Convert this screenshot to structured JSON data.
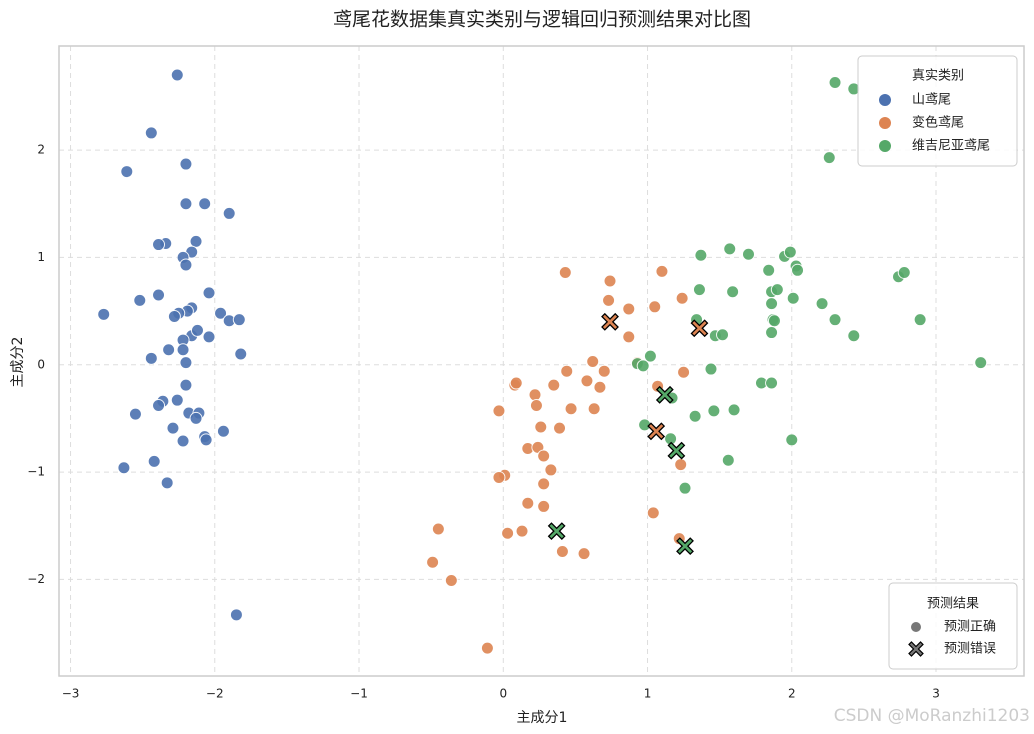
{
  "chart_data": {
    "type": "scatter",
    "title": "鸢尾花数据集真实类别与逻辑回归预测结果对比图",
    "xlabel": "主成分1",
    "ylabel": "主成分2",
    "xlim": [
      -3.08,
      3.61
    ],
    "ylim": [
      -2.9,
      2.97
    ],
    "xticks": [
      {
        "value": -3,
        "label": "−3"
      },
      {
        "value": -2,
        "label": "−2"
      },
      {
        "value": -1,
        "label": "−1"
      },
      0,
      1,
      2,
      3
    ],
    "yticks": [
      {
        "value": -2,
        "label": "−2"
      },
      {
        "value": -1,
        "label": "−1"
      },
      0,
      1,
      2
    ],
    "grid": true,
    "legend_title": "真实类别",
    "legend_position": "upper right",
    "style_legend": {
      "title": "预测结果",
      "position": "lower right",
      "entries": [
        "预测正确",
        "预测错误"
      ]
    },
    "watermark": "CSDN @MoRanzhi1203",
    "series": [
      {
        "name": "山鸢尾",
        "color": "#4c72b0",
        "x": [
          -2.26,
          -2.44,
          -2.2,
          -2.61,
          -2.2,
          -2.07,
          -1.9,
          -2.13,
          -2.34,
          -2.39,
          -2.16,
          -2.22,
          -2.2,
          -2.39,
          -2.52,
          -2.04,
          -2.16,
          -2.19,
          -2.25,
          -2.28,
          -2.77,
          -1.96,
          -1.9,
          -1.83,
          -2.16,
          -2.12,
          -2.04,
          -2.22,
          -2.32,
          -2.22,
          -1.82,
          -2.44,
          -2.2,
          -2.2,
          -2.26,
          -2.36,
          -2.39,
          -2.55,
          -2.18,
          -2.11,
          -2.13,
          -2.29,
          -1.94,
          -2.07,
          -2.06,
          -2.22,
          -2.42,
          -2.63,
          -2.33,
          -1.85
        ],
        "y": [
          2.7,
          2.16,
          1.87,
          1.8,
          1.5,
          1.5,
          1.41,
          1.15,
          1.13,
          1.12,
          1.05,
          1.0,
          0.93,
          0.65,
          0.6,
          0.67,
          0.53,
          0.5,
          0.48,
          0.45,
          0.47,
          0.48,
          0.41,
          0.42,
          0.27,
          0.32,
          0.26,
          0.23,
          0.14,
          0.14,
          0.1,
          0.06,
          0.02,
          -0.19,
          -0.33,
          -0.34,
          -0.38,
          -0.46,
          -0.45,
          -0.45,
          -0.5,
          -0.59,
          -0.62,
          -0.67,
          -0.7,
          -0.71,
          -0.9,
          -0.96,
          -1.1,
          -2.33
        ],
        "wrong_x": [],
        "wrong_y": []
      },
      {
        "name": "变色鸢尾",
        "color": "#dd8452",
        "x": [
          0.43,
          0.74,
          1.1,
          0.73,
          0.87,
          1.05,
          1.24,
          0.87,
          0.93,
          0.62,
          0.7,
          0.44,
          0.58,
          0.67,
          0.08,
          0.09,
          0.35,
          0.22,
          0.23,
          -0.03,
          0.47,
          0.63,
          1.07,
          1.25,
          0.26,
          0.39,
          0.17,
          0.24,
          0.28,
          0.33,
          1.23,
          0.01,
          -0.03,
          0.28,
          0.17,
          0.28,
          1.04,
          -0.45,
          0.03,
          0.13,
          1.22,
          0.41,
          0.56,
          -0.49,
          -0.36,
          -0.11
        ],
        "y": [
          0.86,
          0.78,
          0.87,
          0.6,
          0.52,
          0.54,
          0.62,
          0.26,
          0.02,
          0.03,
          -0.06,
          -0.06,
          -0.15,
          -0.21,
          -0.19,
          -0.17,
          -0.19,
          -0.28,
          -0.38,
          -0.43,
          -0.41,
          -0.41,
          -0.2,
          -0.07,
          -0.58,
          -0.59,
          -0.78,
          -0.77,
          -0.85,
          -0.98,
          -0.93,
          -1.03,
          -1.05,
          -1.11,
          -1.29,
          -1.32,
          -1.38,
          -1.53,
          -1.57,
          -1.55,
          -1.62,
          -1.74,
          -1.76,
          -1.84,
          -2.01,
          -2.64
        ],
        "wrong_x": [
          0.74,
          1.06,
          1.36
        ],
        "wrong_y": [
          0.4,
          -0.62,
          0.34
        ]
      },
      {
        "name": "维吉尼亚鸢尾",
        "color": "#55a868",
        "x": [
          2.3,
          2.43,
          2.26,
          1.37,
          1.57,
          1.7,
          1.95,
          1.99,
          2.03,
          2.04,
          1.84,
          1.36,
          1.59,
          1.86,
          1.9,
          2.01,
          2.21,
          1.86,
          1.87,
          1.88,
          2.3,
          2.89,
          2.74,
          2.78,
          1.34,
          1.47,
          1.52,
          1.86,
          2.43,
          1.02,
          0.93,
          0.97,
          1.44,
          3.31,
          1.79,
          1.86,
          1.17,
          1.33,
          1.46,
          1.6,
          0.98,
          1.16,
          2.0,
          1.56,
          1.26
        ],
        "y": [
          2.63,
          2.57,
          1.93,
          1.02,
          1.08,
          1.03,
          1.01,
          1.05,
          0.92,
          0.88,
          0.88,
          0.7,
          0.68,
          0.68,
          0.7,
          0.62,
          0.57,
          0.57,
          0.42,
          0.41,
          0.42,
          0.42,
          0.82,
          0.86,
          0.42,
          0.27,
          0.28,
          0.3,
          0.27,
          0.08,
          0.01,
          -0.01,
          -0.04,
          0.02,
          -0.17,
          -0.17,
          -0.31,
          -0.48,
          -0.43,
          -0.42,
          -0.56,
          -0.69,
          -0.7,
          -0.89,
          -1.15
        ],
        "wrong_x": [
          1.12,
          1.2,
          0.37,
          1.26
        ],
        "wrong_y": [
          -0.28,
          -0.8,
          -1.55,
          -1.69
        ]
      }
    ]
  }
}
